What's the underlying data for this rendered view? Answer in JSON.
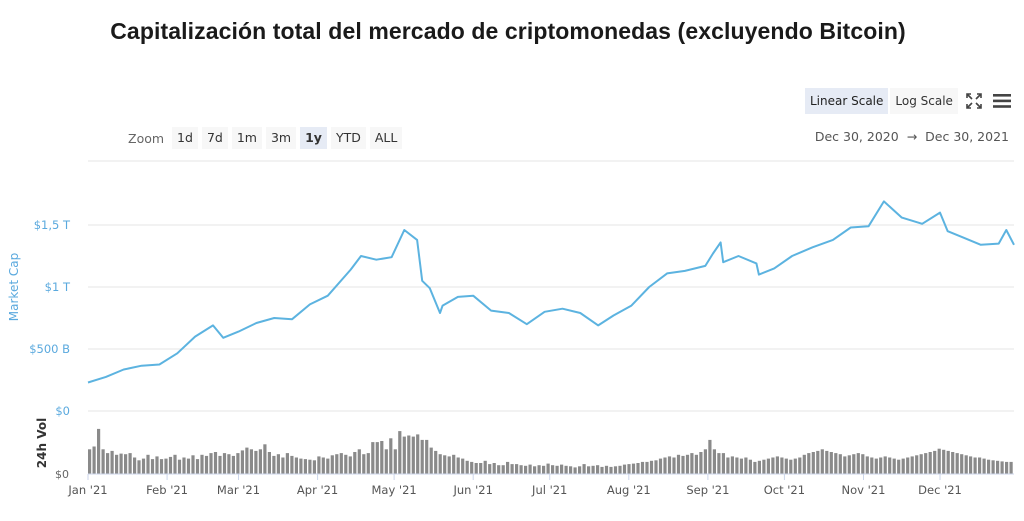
{
  "title": "Capitalización total del mercado de criptomonedas (excluyendo Bitcoin)",
  "scale_buttons": [
    {
      "label": "Linear Scale",
      "active": true
    },
    {
      "label": "Log Scale",
      "active": false
    }
  ],
  "icons": {
    "fullscreen": "fullscreen-icon",
    "menu": "hamburger-menu-icon"
  },
  "zoom": {
    "label": "Zoom",
    "buttons": [
      "1d",
      "7d",
      "1m",
      "3m",
      "1y",
      "YTD",
      "ALL"
    ],
    "active": "1y"
  },
  "range": {
    "from": "Dec 30, 2020",
    "arrow": "→",
    "to": "Dec 30, 2021"
  },
  "colors": {
    "line": "#5cb3e0",
    "axis_label": "#5aa9de",
    "volume": "#8a8a8a",
    "grid": "#e6e6e6"
  },
  "chart_data": [
    {
      "type": "line",
      "ylabel": "Market Cap",
      "yticks": [
        "$0",
        "$500 B",
        "$1 T",
        "$1,5 T"
      ],
      "ytick_values": [
        0,
        500,
        1000,
        1500
      ],
      "ylim": [
        0,
        1950
      ],
      "unit": "B USD",
      "x_ticks": [
        "Jan '21",
        "Feb '21",
        "Mar '21",
        "Apr '21",
        "May '21",
        "Jun '21",
        "Jul '21",
        "Aug '21",
        "Sep '21",
        "Oct '21",
        "Nov '21",
        "Dec '21"
      ],
      "x": [
        "2021-01-01",
        "2021-01-08",
        "2021-01-15",
        "2021-01-22",
        "2021-01-29",
        "2021-02-05",
        "2021-02-12",
        "2021-02-19",
        "2021-02-23",
        "2021-03-01",
        "2021-03-08",
        "2021-03-15",
        "2021-03-22",
        "2021-03-29",
        "2021-04-05",
        "2021-04-14",
        "2021-04-18",
        "2021-04-24",
        "2021-04-30",
        "2021-05-05",
        "2021-05-10",
        "2021-05-12",
        "2021-05-15",
        "2021-05-19",
        "2021-05-20",
        "2021-05-26",
        "2021-06-01",
        "2021-06-08",
        "2021-06-15",
        "2021-06-22",
        "2021-06-29",
        "2021-07-06",
        "2021-07-13",
        "2021-07-20",
        "2021-07-26",
        "2021-08-02",
        "2021-08-09",
        "2021-08-16",
        "2021-08-23",
        "2021-08-31",
        "2021-09-03",
        "2021-09-06",
        "2021-09-07",
        "2021-09-13",
        "2021-09-20",
        "2021-09-21",
        "2021-09-27",
        "2021-10-04",
        "2021-10-12",
        "2021-10-20",
        "2021-10-27",
        "2021-11-03",
        "2021-11-09",
        "2021-11-16",
        "2021-11-24",
        "2021-12-01",
        "2021-12-04",
        "2021-12-10",
        "2021-12-17",
        "2021-12-24",
        "2021-12-27",
        "2021-12-30"
      ],
      "y": [
        230,
        275,
        335,
        365,
        375,
        465,
        600,
        690,
        590,
        640,
        710,
        750,
        740,
        860,
        930,
        1140,
        1250,
        1220,
        1240,
        1460,
        1380,
        1050,
        990,
        790,
        850,
        920,
        930,
        810,
        790,
        700,
        800,
        825,
        790,
        690,
        770,
        850,
        1000,
        1110,
        1130,
        1170,
        1270,
        1360,
        1200,
        1250,
        1190,
        1100,
        1150,
        1250,
        1320,
        1380,
        1480,
        1490,
        1690,
        1560,
        1510,
        1600,
        1450,
        1400,
        1340,
        1350,
        1460,
        1340
      ]
    },
    {
      "type": "bar",
      "ylabel": "24h Vol",
      "yticks": [
        "$0"
      ],
      "x_start": "2021-01-01",
      "x_end": "2021-12-30",
      "unit": "relative",
      "values": [
        45,
        50,
        82,
        45,
        38,
        42,
        35,
        37,
        36,
        38,
        30,
        25,
        28,
        35,
        27,
        32,
        27,
        28,
        31,
        35,
        26,
        30,
        28,
        34,
        27,
        35,
        33,
        38,
        40,
        33,
        38,
        36,
        33,
        38,
        43,
        48,
        45,
        42,
        45,
        54,
        40,
        33,
        36,
        30,
        38,
        33,
        30,
        28,
        27,
        26,
        25,
        32,
        30,
        28,
        34,
        36,
        38,
        35,
        32,
        40,
        45,
        36,
        38,
        58,
        58,
        60,
        45,
        65,
        45,
        78,
        68,
        70,
        68,
        72,
        62,
        62,
        48,
        42,
        36,
        34,
        32,
        35,
        30,
        28,
        24,
        22,
        20,
        20,
        24,
        18,
        20,
        16,
        16,
        22,
        18,
        18,
        16,
        15,
        17,
        14,
        16,
        15,
        19,
        16,
        15,
        17,
        15,
        14,
        12,
        14,
        18,
        14,
        15,
        16,
        13,
        15,
        13,
        14,
        15,
        17,
        18,
        19,
        20,
        22,
        22,
        24,
        25,
        28,
        30,
        32,
        30,
        35,
        33,
        35,
        38,
        35,
        40,
        45,
        62,
        45,
        38,
        38,
        30,
        32,
        30,
        28,
        30,
        26,
        22,
        24,
        26,
        28,
        30,
        32,
        30,
        28,
        26,
        28,
        30,
        35,
        38,
        40,
        42,
        45,
        42,
        40,
        38,
        36,
        32,
        34,
        36,
        38,
        36,
        32,
        30,
        28,
        30,
        32,
        30,
        28,
        26,
        28,
        30,
        32,
        34,
        36,
        38,
        40,
        42,
        46,
        44,
        42,
        40,
        38,
        36,
        34,
        32,
        30,
        30,
        28,
        26,
        25,
        24,
        23,
        22,
        22
      ]
    }
  ]
}
